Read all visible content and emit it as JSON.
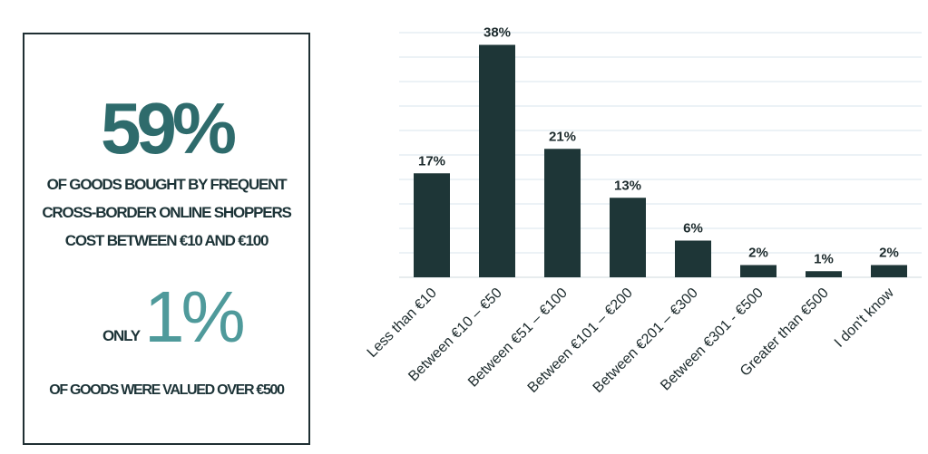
{
  "infobox": {
    "headline_value": "59%",
    "headline_caption_lines": [
      "OF GOODS BOUGHT BY FREQUENT",
      "CROSS-BORDER ONLINE SHOPPERS",
      "COST BETWEEN  €10 AND €100"
    ],
    "only_label": "ONLY",
    "secondary_value": "1%",
    "secondary_caption": "OF GOODS WERE VALUED OVER €500"
  },
  "chart_data": {
    "type": "bar",
    "categories": [
      "Less than €10",
      "Between €10 – €50",
      "Between €51 – €100",
      "Between €101 – €200",
      "Between €201 – €300",
      "Between €301 - €500",
      "Greater than €500",
      "I don't know"
    ],
    "values": [
      17,
      38,
      21,
      13,
      6,
      2,
      1,
      2
    ],
    "data_labels": [
      "17%",
      "38%",
      "21%",
      "13%",
      "6%",
      "2%",
      "1%",
      "2%"
    ],
    "ylim": [
      0,
      40
    ],
    "grid": true,
    "colors": {
      "bar": "#1e3637",
      "gridline": "#d8e6ee"
    }
  }
}
